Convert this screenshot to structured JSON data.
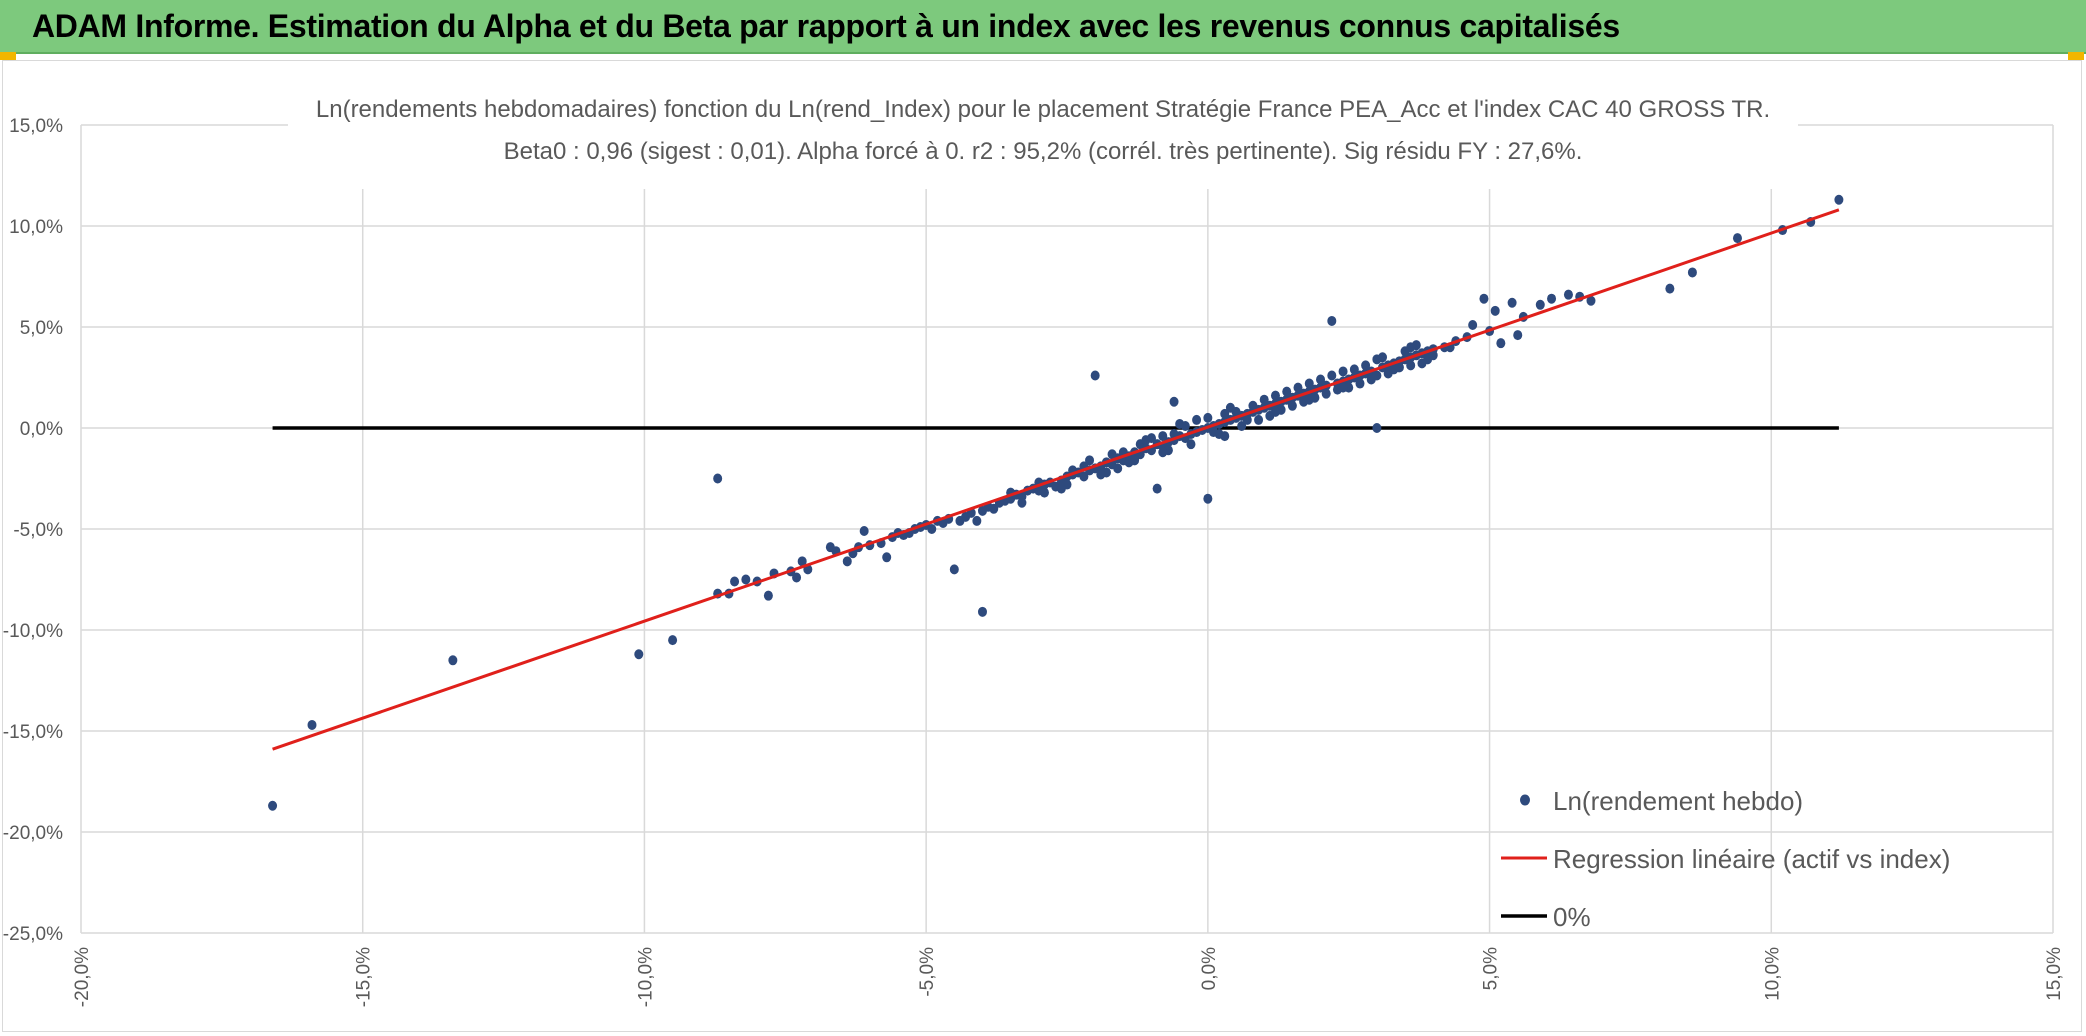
{
  "header": {
    "title": "ADAM Informe. Estimation du Alpha et du Beta par rapport à un index avec les revenus connus capitalisés"
  },
  "colors": {
    "banner": "#7dc97d",
    "points": "#2e4a7d",
    "regression": "#e0201b",
    "zero_line": "#000000",
    "grid": "#d9d9d9"
  },
  "chart_data": {
    "type": "scatter",
    "title": "Ln(rendements hebdomadaires) fonction du Ln(rend_Index) pour le placement Stratégie France PEA_Acc et l'index CAC 40 GROSS TR.",
    "subtitle": "Beta0 : 0,96 (sigest : 0,01). Alpha forcé à 0. r2 : 95,2% (corrél. très pertinente). Sig résidu FY : 27,6%.",
    "xlim": [
      -0.2,
      0.15
    ],
    "ylim": [
      -0.25,
      0.15
    ],
    "x_ticks": [
      -0.2,
      -0.15,
      -0.1,
      -0.05,
      0.0,
      0.05,
      0.1,
      0.15
    ],
    "y_ticks": [
      -0.25,
      -0.2,
      -0.15,
      -0.1,
      -0.05,
      0.0,
      0.05,
      0.1,
      0.15
    ],
    "x_tick_labels": [
      "-20,0%",
      "-15,0%",
      "-10,0%",
      "-5,0%",
      "0,0%",
      "5,0%",
      "10,0%",
      "15,0%"
    ],
    "y_tick_labels": [
      "-25,0%",
      "-20,0%",
      "-15,0%",
      "-10,0%",
      "-5,0%",
      "0,0%",
      "5,0%",
      "10,0%",
      "15,0%"
    ],
    "grid": true,
    "legend_position": "bottom-right",
    "series": [
      {
        "name": "Ln(rendement hebdo)",
        "kind": "scatter",
        "color": "#2e4a7d",
        "points": [
          [
            -0.166,
            -0.187
          ],
          [
            -0.159,
            -0.147
          ],
          [
            -0.134,
            -0.115
          ],
          [
            -0.101,
            -0.112
          ],
          [
            -0.095,
            -0.105
          ],
          [
            -0.087,
            -0.025
          ],
          [
            -0.087,
            -0.082
          ],
          [
            -0.085,
            -0.082
          ],
          [
            -0.084,
            -0.076
          ],
          [
            -0.082,
            -0.075
          ],
          [
            -0.08,
            -0.076
          ],
          [
            -0.078,
            -0.083
          ],
          [
            -0.077,
            -0.072
          ],
          [
            -0.074,
            -0.071
          ],
          [
            -0.073,
            -0.074
          ],
          [
            -0.072,
            -0.066
          ],
          [
            -0.071,
            -0.07
          ],
          [
            -0.067,
            -0.059
          ],
          [
            -0.066,
            -0.061
          ],
          [
            -0.064,
            -0.066
          ],
          [
            -0.063,
            -0.062
          ],
          [
            -0.062,
            -0.059
          ],
          [
            -0.061,
            -0.051
          ],
          [
            -0.06,
            -0.058
          ],
          [
            -0.058,
            -0.057
          ],
          [
            -0.057,
            -0.064
          ],
          [
            -0.056,
            -0.054
          ],
          [
            -0.055,
            -0.052
          ],
          [
            -0.054,
            -0.053
          ],
          [
            -0.053,
            -0.052
          ],
          [
            -0.052,
            -0.05
          ],
          [
            -0.051,
            -0.049
          ],
          [
            -0.05,
            -0.048
          ],
          [
            -0.049,
            -0.05
          ],
          [
            -0.048,
            -0.046
          ],
          [
            -0.047,
            -0.047
          ],
          [
            -0.046,
            -0.045
          ],
          [
            -0.045,
            -0.07
          ],
          [
            -0.044,
            -0.046
          ],
          [
            -0.043,
            -0.044
          ],
          [
            -0.042,
            -0.042
          ],
          [
            -0.041,
            -0.046
          ],
          [
            -0.04,
            -0.091
          ],
          [
            -0.04,
            -0.041
          ],
          [
            -0.039,
            -0.039
          ],
          [
            -0.038,
            -0.04
          ],
          [
            -0.037,
            -0.037
          ],
          [
            -0.036,
            -0.036
          ],
          [
            -0.035,
            -0.035
          ],
          [
            -0.034,
            -0.033
          ],
          [
            -0.033,
            -0.034
          ],
          [
            -0.032,
            -0.031
          ],
          [
            -0.031,
            -0.03
          ],
          [
            -0.03,
            -0.031
          ],
          [
            -0.029,
            -0.028
          ],
          [
            -0.028,
            -0.027
          ],
          [
            -0.027,
            -0.029
          ],
          [
            -0.026,
            -0.026
          ],
          [
            -0.025,
            -0.024
          ],
          [
            -0.024,
            -0.023
          ],
          [
            -0.023,
            -0.022
          ],
          [
            -0.022,
            -0.024
          ],
          [
            -0.021,
            -0.021
          ],
          [
            -0.02,
            -0.02
          ],
          [
            -0.02,
            0.026
          ],
          [
            -0.019,
            -0.019
          ],
          [
            -0.018,
            -0.017
          ],
          [
            -0.017,
            -0.018
          ],
          [
            -0.016,
            -0.015
          ],
          [
            -0.015,
            -0.016
          ],
          [
            -0.014,
            -0.014
          ],
          [
            -0.013,
            -0.012
          ],
          [
            -0.012,
            -0.013
          ],
          [
            -0.011,
            -0.01
          ],
          [
            -0.01,
            -0.011
          ],
          [
            -0.009,
            -0.008
          ],
          [
            -0.009,
            -0.03
          ],
          [
            -0.008,
            -0.009
          ],
          [
            -0.007,
            -0.007
          ],
          [
            -0.006,
            0.013
          ],
          [
            -0.006,
            -0.006
          ],
          [
            -0.005,
            -0.004
          ],
          [
            -0.004,
            -0.005
          ],
          [
            -0.003,
            -0.003
          ],
          [
            -0.002,
            -0.002
          ],
          [
            -0.001,
            -0.001
          ],
          [
            0.0,
            -0.035
          ],
          [
            0.0,
            0.0
          ],
          [
            0.001,
            0.001
          ],
          [
            0.002,
            0.002
          ],
          [
            0.003,
            0.003
          ],
          [
            0.004,
            0.004
          ],
          [
            0.005,
            0.005
          ],
          [
            0.006,
            0.006
          ],
          [
            0.007,
            0.007
          ],
          [
            0.008,
            0.008
          ],
          [
            0.009,
            0.009
          ],
          [
            0.01,
            0.01
          ],
          [
            0.011,
            0.011
          ],
          [
            0.012,
            0.012
          ],
          [
            0.013,
            0.013
          ],
          [
            0.014,
            0.014
          ],
          [
            0.015,
            0.015
          ],
          [
            0.016,
            0.016
          ],
          [
            0.017,
            0.017
          ],
          [
            0.018,
            0.018
          ],
          [
            0.019,
            0.019
          ],
          [
            0.02,
            0.02
          ],
          [
            0.021,
            0.021
          ],
          [
            0.022,
            0.053
          ],
          [
            0.023,
            0.022
          ],
          [
            0.024,
            0.023
          ],
          [
            0.025,
            0.024
          ],
          [
            0.026,
            0.025
          ],
          [
            0.027,
            0.026
          ],
          [
            0.028,
            0.027
          ],
          [
            0.029,
            0.028
          ],
          [
            0.03,
            0.0
          ],
          [
            0.031,
            0.03
          ],
          [
            0.032,
            0.031
          ],
          [
            0.033,
            0.032
          ],
          [
            0.034,
            0.033
          ],
          [
            0.035,
            0.034
          ],
          [
            0.036,
            0.035
          ],
          [
            0.037,
            0.036
          ],
          [
            0.038,
            0.037
          ],
          [
            0.039,
            0.038
          ],
          [
            0.04,
            0.039
          ],
          [
            0.042,
            0.04
          ],
          [
            0.044,
            0.043
          ],
          [
            0.046,
            0.045
          ],
          [
            0.047,
            0.051
          ],
          [
            0.049,
            0.064
          ],
          [
            0.05,
            0.048
          ],
          [
            0.051,
            0.058
          ],
          [
            0.052,
            0.042
          ],
          [
            0.054,
            0.062
          ],
          [
            0.055,
            0.046
          ],
          [
            0.056,
            0.055
          ],
          [
            0.059,
            0.061
          ],
          [
            0.061,
            0.064
          ],
          [
            0.064,
            0.066
          ],
          [
            0.066,
            0.065
          ],
          [
            0.068,
            0.063
          ],
          [
            0.082,
            0.069
          ],
          [
            0.086,
            0.077
          ],
          [
            0.094,
            0.094
          ],
          [
            0.102,
            0.098
          ],
          [
            0.107,
            0.102
          ],
          [
            0.112,
            0.113
          ],
          [
            -0.018,
            -0.022
          ],
          [
            -0.016,
            -0.02
          ],
          [
            -0.012,
            -0.008
          ],
          [
            -0.008,
            -0.004
          ],
          [
            -0.005,
            0.002
          ],
          [
            -0.003,
            -0.008
          ],
          [
            0.002,
            -0.003
          ],
          [
            0.004,
            0.01
          ],
          [
            0.006,
            0.001
          ],
          [
            0.009,
            0.004
          ],
          [
            0.012,
            0.016
          ],
          [
            0.015,
            0.011
          ],
          [
            0.018,
            0.022
          ],
          [
            0.021,
            0.017
          ],
          [
            0.024,
            0.028
          ],
          [
            0.027,
            0.022
          ],
          [
            0.03,
            0.034
          ],
          [
            0.033,
            0.029
          ],
          [
            0.036,
            0.04
          ],
          [
            0.038,
            0.032
          ],
          [
            -0.025,
            -0.028
          ],
          [
            -0.022,
            -0.019
          ],
          [
            -0.019,
            -0.023
          ],
          [
            -0.014,
            -0.017
          ],
          [
            -0.011,
            -0.006
          ],
          [
            -0.007,
            -0.011
          ],
          [
            -0.004,
            0.001
          ],
          [
            0.001,
            -0.002
          ],
          [
            0.003,
            0.007
          ],
          [
            0.007,
            0.004
          ],
          [
            0.01,
            0.014
          ],
          [
            0.013,
            0.009
          ],
          [
            0.016,
            0.02
          ],
          [
            0.019,
            0.015
          ],
          [
            0.022,
            0.026
          ],
          [
            0.025,
            0.02
          ],
          [
            0.028,
            0.031
          ],
          [
            0.032,
            0.027
          ],
          [
            0.035,
            0.038
          ],
          [
            0.039,
            0.034
          ],
          [
            -0.03,
            -0.027
          ],
          [
            -0.026,
            -0.03
          ],
          [
            -0.021,
            -0.016
          ],
          [
            -0.017,
            -0.013
          ],
          [
            -0.013,
            -0.016
          ],
          [
            -0.01,
            -0.005
          ],
          [
            -0.008,
            -0.012
          ],
          [
            -0.002,
            0.004
          ],
          [
            0.003,
            -0.004
          ],
          [
            0.008,
            0.011
          ],
          [
            0.011,
            0.006
          ],
          [
            0.014,
            0.018
          ],
          [
            0.017,
            0.013
          ],
          [
            0.02,
            0.024
          ],
          [
            0.023,
            0.019
          ],
          [
            0.026,
            0.029
          ],
          [
            0.029,
            0.024
          ],
          [
            0.031,
            0.035
          ],
          [
            0.034,
            0.03
          ],
          [
            0.037,
            0.041
          ],
          [
            -0.035,
            -0.032
          ],
          [
            -0.033,
            -0.037
          ],
          [
            -0.029,
            -0.032
          ],
          [
            -0.024,
            -0.021
          ],
          [
            -0.015,
            -0.012
          ],
          [
            -0.006,
            -0.003
          ],
          [
            0.0,
            0.005
          ],
          [
            0.005,
            0.008
          ],
          [
            0.012,
            0.008
          ],
          [
            0.018,
            0.014
          ],
          [
            0.024,
            0.02
          ],
          [
            0.03,
            0.026
          ],
          [
            0.036,
            0.031
          ],
          [
            0.04,
            0.036
          ],
          [
            0.043,
            0.04
          ]
        ]
      },
      {
        "name": "Regression linéaire (actif vs index)",
        "kind": "line",
        "color": "#e0201b",
        "points": [
          [
            -0.166,
            -0.159
          ],
          [
            0.112,
            0.108
          ]
        ]
      },
      {
        "name": "0%",
        "kind": "line",
        "color": "#000000",
        "points": [
          [
            -0.166,
            0.0
          ],
          [
            0.112,
            0.0
          ]
        ]
      }
    ]
  }
}
